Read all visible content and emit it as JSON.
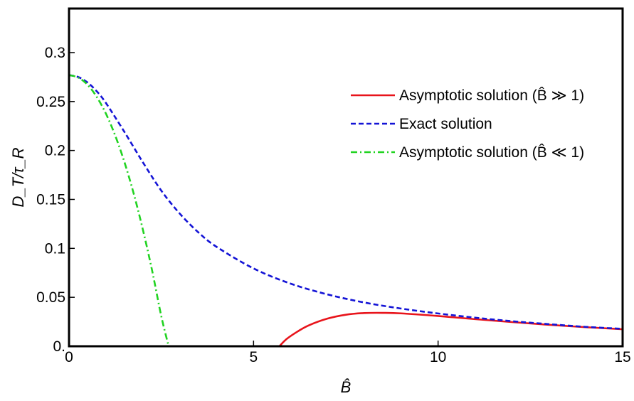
{
  "chart_data": {
    "type": "line",
    "title": "",
    "xlabel": "B̂",
    "ylabel": "D_T/τ_R",
    "xlim": [
      0,
      15
    ],
    "ylim": [
      0,
      0.345
    ],
    "xticks": [
      0,
      5,
      10,
      15
    ],
    "xtick_labels": [
      "0",
      "5",
      "10",
      "15"
    ],
    "yticks": [
      0,
      0.05,
      0.1,
      0.15,
      0.2,
      0.25,
      0.3
    ],
    "ytick_labels": [
      "0.",
      "0.05",
      "0.1",
      "0.15",
      "0.2",
      "0.25",
      "0.3"
    ],
    "grid": false,
    "frame": "box",
    "legend_position": "top-right",
    "series": [
      {
        "name": "Asymptotic solution (B̂ ≫ 1)",
        "color": "#e8141b",
        "style": "solid",
        "x": [
          5.7,
          5.9,
          6.2,
          6.5,
          7.0,
          7.5,
          8.0,
          8.5,
          9.0,
          10.0,
          11.0,
          12.0,
          13.0,
          14.0,
          15.0
        ],
        "y": [
          0.0,
          0.0075,
          0.0152,
          0.0214,
          0.0282,
          0.0322,
          0.0339,
          0.0341,
          0.0336,
          0.0309,
          0.0277,
          0.0247,
          0.0219,
          0.0195,
          0.0174
        ]
      },
      {
        "name": "Exact solution",
        "color": "#1414d6",
        "style": "dashed",
        "x": [
          0.0,
          0.25,
          0.5,
          0.75,
          1.0,
          1.5,
          2.0,
          2.5,
          3.0,
          3.5,
          4.0,
          5.0,
          6.0,
          7.0,
          8.0,
          9.0,
          10.0,
          11.0,
          12.0,
          13.0,
          14.0,
          15.0
        ],
        "y": [
          0.277,
          0.275,
          0.2695,
          0.2605,
          0.2485,
          0.219,
          0.188,
          0.159,
          0.1355,
          0.1165,
          0.1015,
          0.0795,
          0.064,
          0.053,
          0.0447,
          0.0385,
          0.0335,
          0.0292,
          0.0256,
          0.0226,
          0.0198,
          0.0178
        ]
      },
      {
        "name": "Asymptotic solution (B̂ ≪ 1)",
        "color": "#21d321",
        "style": "dashdot",
        "x": [
          0.0,
          0.25,
          0.5,
          0.75,
          1.0,
          1.25,
          1.5,
          1.75,
          2.0,
          2.25,
          2.5,
          2.7
        ],
        "y": [
          0.277,
          0.2745,
          0.2672,
          0.2548,
          0.2376,
          0.2154,
          0.1883,
          0.1563,
          0.1193,
          0.0776,
          0.0307,
          0.0
        ]
      }
    ]
  }
}
